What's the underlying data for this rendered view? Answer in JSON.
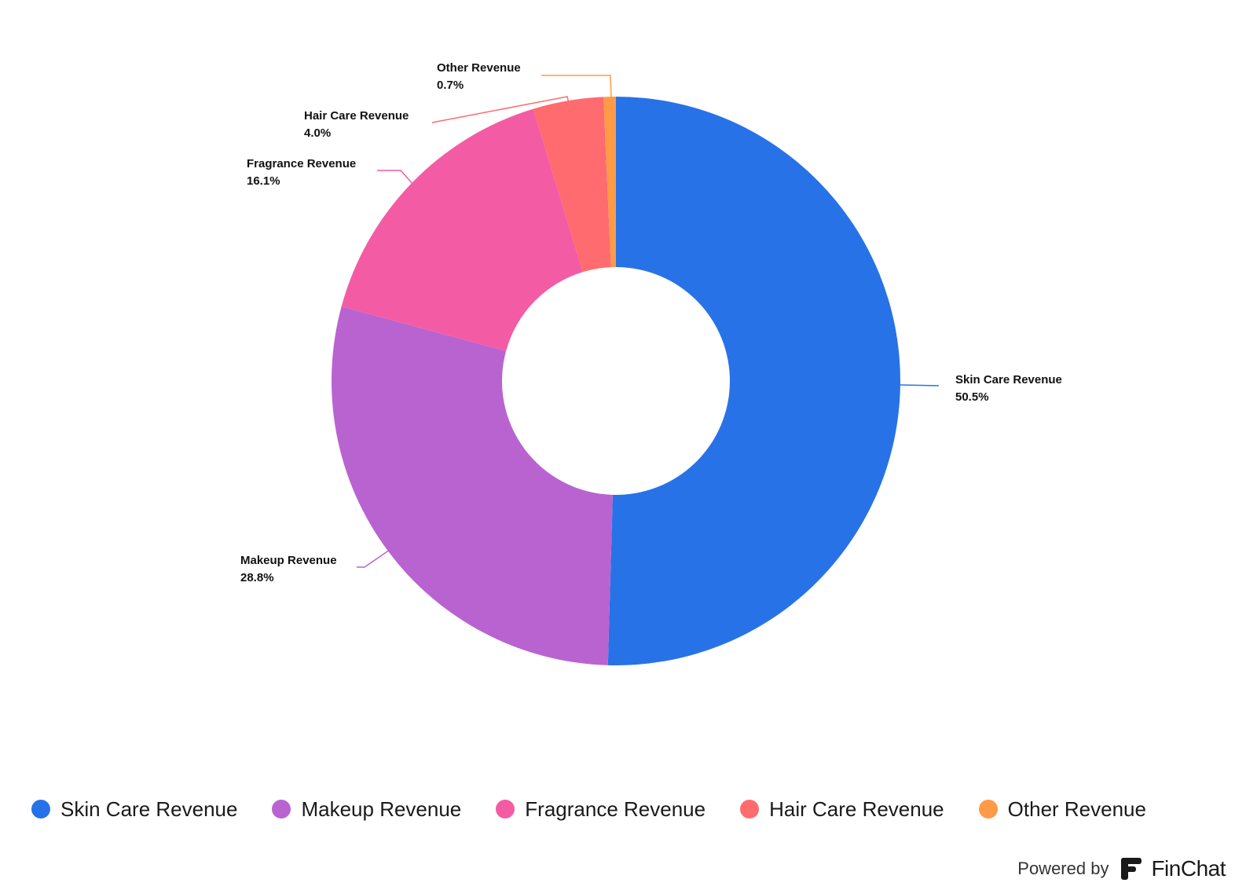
{
  "chart_data": {
    "type": "pie",
    "variant": "donut",
    "title": "",
    "slices": [
      {
        "name": "Skin Care Revenue",
        "value": 50.5,
        "label": "50.5%",
        "color": "#2872e8"
      },
      {
        "name": "Makeup Revenue",
        "value": 28.8,
        "label": "28.8%",
        "color": "#b963d1"
      },
      {
        "name": "Fragrance Revenue",
        "value": 16.1,
        "label": "16.1%",
        "color": "#f45ba5"
      },
      {
        "name": "Hair Care Revenue",
        "value": 4.0,
        "label": "4.0%",
        "color": "#ff6b6e"
      },
      {
        "name": "Other Revenue",
        "value": 0.7,
        "label": "0.7%",
        "color": "#ff9a47"
      }
    ],
    "legend_position": "bottom-left"
  },
  "branding": {
    "powered_by": "Powered by",
    "brand_name": "FinChat"
  }
}
